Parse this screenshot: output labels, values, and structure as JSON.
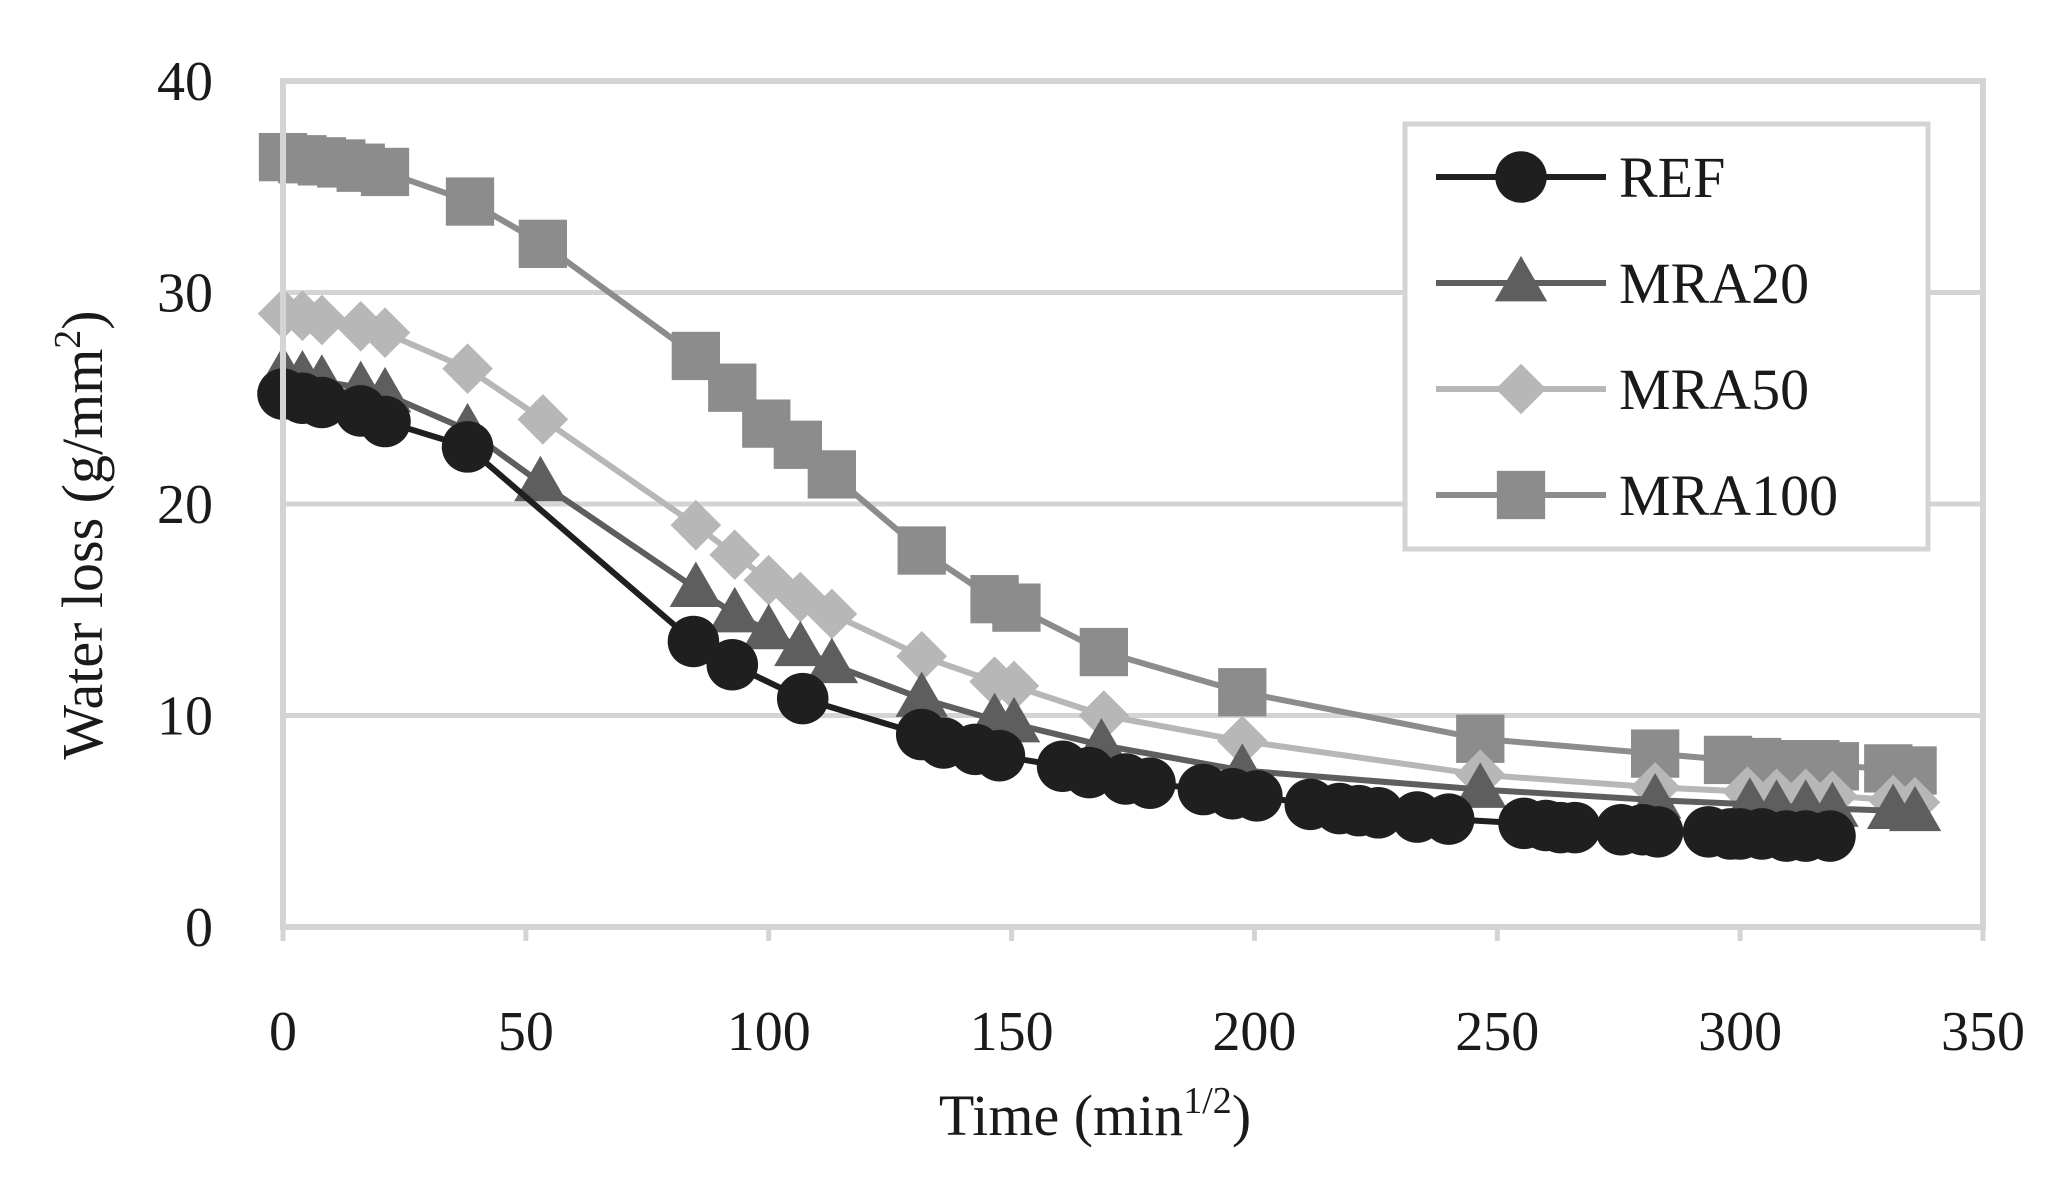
{
  "chart_data": {
    "type": "line",
    "title": "",
    "xlabel": "Time (min",
    "xlabel_sup": "1/2",
    "xlabel_end": ")",
    "ylabel": "Water loss (g/mm",
    "ylabel_sup": "2",
    "ylabel_end": ")",
    "xlim": [
      0,
      350
    ],
    "ylim": [
      0,
      40
    ],
    "xticks": [
      0,
      50,
      100,
      150,
      200,
      250,
      300,
      350
    ],
    "yticks": [
      0,
      10,
      20,
      30,
      40
    ],
    "grid": "horizontal",
    "legend_position": "top-right",
    "series": [
      {
        "name": "REF",
        "color": "#1f1f1f",
        "marker": "circle",
        "x": [
          0,
          4,
          8,
          16,
          21,
          38,
          84.5,
          92.5,
          107,
          131.5,
          136,
          142.5,
          147.5,
          160.5,
          166,
          173.5,
          178.5,
          189.5,
          195.5,
          200.5,
          211.5,
          217.5,
          221.5,
          225.5,
          233.5,
          240,
          255.5,
          260,
          263,
          266,
          275.5,
          280,
          283,
          293.5,
          298,
          300,
          304.5,
          309.5,
          313.5,
          318.5
        ],
        "y": [
          25.2,
          25.0,
          24.8,
          24.4,
          23.9,
          22.7,
          13.5,
          12.4,
          10.8,
          9.1,
          8.7,
          8.4,
          8.1,
          7.6,
          7.3,
          7.0,
          6.8,
          6.5,
          6.3,
          6.2,
          5.8,
          5.6,
          5.5,
          5.4,
          5.2,
          5.1,
          4.9,
          4.8,
          4.7,
          4.7,
          4.6,
          4.6,
          4.5,
          4.5,
          4.4,
          4.4,
          4.4,
          4.3,
          4.3,
          4.3
        ]
      },
      {
        "name": "MRA20",
        "color": "#5e5e5e",
        "marker": "triangle",
        "x": [
          0,
          4,
          8,
          16,
          21,
          38,
          53,
          85,
          93,
          100,
          106.5,
          113,
          131.5,
          146.5,
          150.5,
          168.5,
          197.5,
          246.5,
          282.5,
          302,
          307.5,
          313.5,
          319,
          331.5,
          336
        ],
        "y": [
          26.2,
          26.0,
          25.8,
          25.5,
          25.2,
          23.5,
          21.0,
          16.0,
          14.8,
          14.0,
          13.2,
          12.4,
          10.8,
          9.8,
          9.6,
          8.6,
          7.4,
          6.5,
          6.0,
          5.8,
          5.7,
          5.7,
          5.6,
          5.5,
          5.4
        ]
      },
      {
        "name": "MRA50",
        "color": "#b7b7b7",
        "marker": "diamond",
        "x": [
          0,
          4,
          8,
          16,
          21,
          38,
          53.5,
          85,
          93,
          100,
          106.5,
          113,
          131.5,
          146.5,
          150.5,
          169,
          197.5,
          246.5,
          282.5,
          301.5,
          307.5,
          313.5,
          319,
          331.5,
          336
        ],
        "y": [
          29.0,
          28.9,
          28.7,
          28.4,
          28.1,
          26.4,
          24.0,
          19.0,
          17.6,
          16.4,
          15.6,
          14.8,
          12.8,
          11.6,
          11.4,
          10.0,
          8.8,
          7.2,
          6.6,
          6.4,
          6.3,
          6.3,
          6.2,
          6.0,
          5.9
        ]
      },
      {
        "name": "MRA100",
        "color": "#8c8c8c",
        "marker": "square",
        "x": [
          0,
          4,
          8,
          12,
          16,
          21,
          38.5,
          53.5,
          85,
          92.5,
          99.5,
          106,
          113,
          131.5,
          146.5,
          151,
          169,
          197.5,
          246.5,
          282.5,
          297.5,
          303.5,
          309.5,
          315.5,
          319.5,
          330.5,
          335.5
        ],
        "y": [
          36.4,
          36.3,
          36.2,
          36.1,
          35.9,
          35.7,
          34.3,
          32.3,
          27.0,
          25.5,
          23.8,
          22.8,
          21.4,
          17.8,
          15.5,
          15.1,
          13.0,
          11.1,
          8.9,
          8.2,
          7.9,
          7.8,
          7.7,
          7.7,
          7.6,
          7.5,
          7.4
        ]
      }
    ]
  }
}
